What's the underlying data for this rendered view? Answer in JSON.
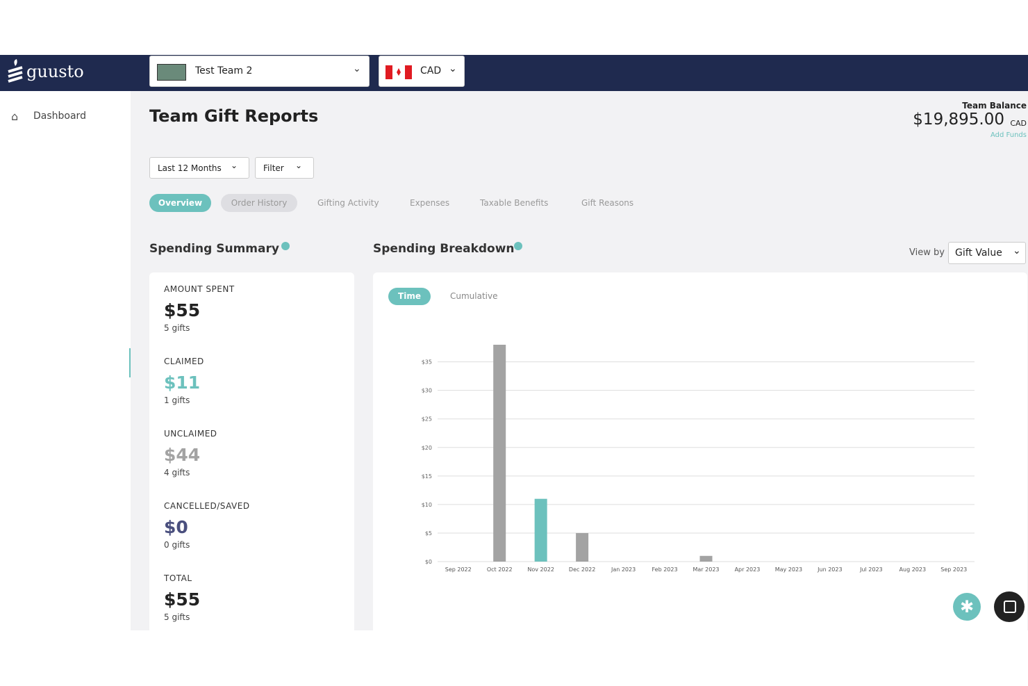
{
  "header": {
    "logo": "guusto",
    "team": "Test Team 2",
    "currency": "CAD"
  },
  "sidebar": {
    "items": [
      "Dashboard"
    ]
  },
  "page": {
    "title": "Team Gift Reports",
    "balance_label": "Team Balance",
    "balance": "$19,895.00",
    "balance_currency": "CAD",
    "add_funds": "Add Funds",
    "filters": [
      "Last 12 Months",
      "Filter"
    ],
    "tabs": [
      "Overview",
      "Order History",
      "Gifting Activity",
      "Expenses",
      "Taxable Benefits",
      "Gift Reasons"
    ]
  },
  "summary": {
    "title": "Spending Summary",
    "items": [
      {
        "label": "AMOUNT SPENT",
        "amount": "$55",
        "gifts": "5 gifts"
      },
      {
        "label": "CLAIMED",
        "amount": "$11",
        "gifts": "1 gifts"
      },
      {
        "label": "UNCLAIMED",
        "amount": "$44",
        "gifts": "4 gifts"
      },
      {
        "label": "CANCELLED/SAVED",
        "amount": "$0",
        "gifts": "0 gifts"
      },
      {
        "label": "TOTAL",
        "amount": "$55",
        "gifts": "5 gifts"
      }
    ]
  },
  "breakdown": {
    "title": "Spending Breakdown",
    "view_by": "View by",
    "view_value": "Gift Value",
    "toggles": [
      "Time",
      "Cumulative"
    ]
  },
  "chart_data": {
    "type": "bar",
    "categories": [
      "Sep 2022",
      "Oct 2022",
      "Nov 2022",
      "Dec 2022",
      "Jan 2023",
      "Feb 2023",
      "Mar 2023",
      "Apr 2023",
      "May 2023",
      "Jun 2023",
      "Jul 2023",
      "Aug 2023",
      "Sep 2023"
    ],
    "values": [
      0,
      38,
      11,
      5,
      0,
      0,
      1,
      0,
      0,
      0,
      0,
      0,
      0
    ],
    "colors": [
      "#a3a3a3",
      "#a3a3a3",
      "#6cc1bd",
      "#a3a3a3",
      "#a3a3a3",
      "#a3a3a3",
      "#a3a3a3",
      "#a3a3a3",
      "#a3a3a3",
      "#a3a3a3",
      "#a3a3a3",
      "#a3a3a3",
      "#a3a3a3"
    ],
    "ylim": [
      0,
      38
    ],
    "yticks": [
      {
        "value": 0,
        "label": "$0"
      },
      {
        "value": 5,
        "label": "$5"
      },
      {
        "value": 10,
        "label": "$10"
      },
      {
        "value": 15,
        "label": "$15"
      },
      {
        "value": 20,
        "label": "$20"
      },
      {
        "value": 25,
        "label": "$25"
      },
      {
        "value": 30,
        "label": "$30"
      },
      {
        "value": 35,
        "label": "$35"
      }
    ],
    "grid": true
  }
}
